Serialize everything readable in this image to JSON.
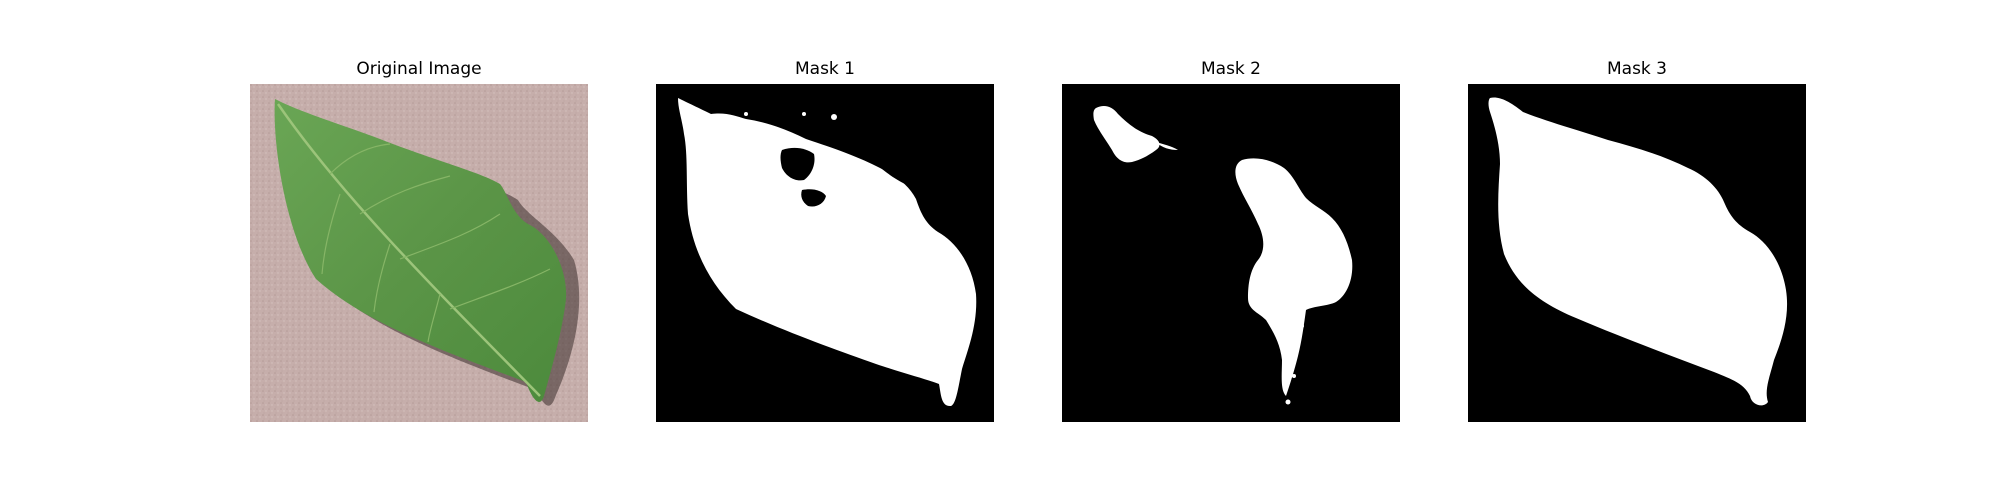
{
  "figure": {
    "panels": [
      {
        "title": "Original Image",
        "kind": "photo"
      },
      {
        "title": "Mask 1",
        "kind": "binary-mask"
      },
      {
        "title": "Mask 2",
        "kind": "binary-mask"
      },
      {
        "title": "Mask 3",
        "kind": "binary-mask"
      }
    ]
  },
  "colors": {
    "background": "#ffffff",
    "mask_foreground": "#ffffff",
    "mask_background": "#000000",
    "leaf_green": "#5f9a4a",
    "surface_pink": "#c9b3b0"
  }
}
